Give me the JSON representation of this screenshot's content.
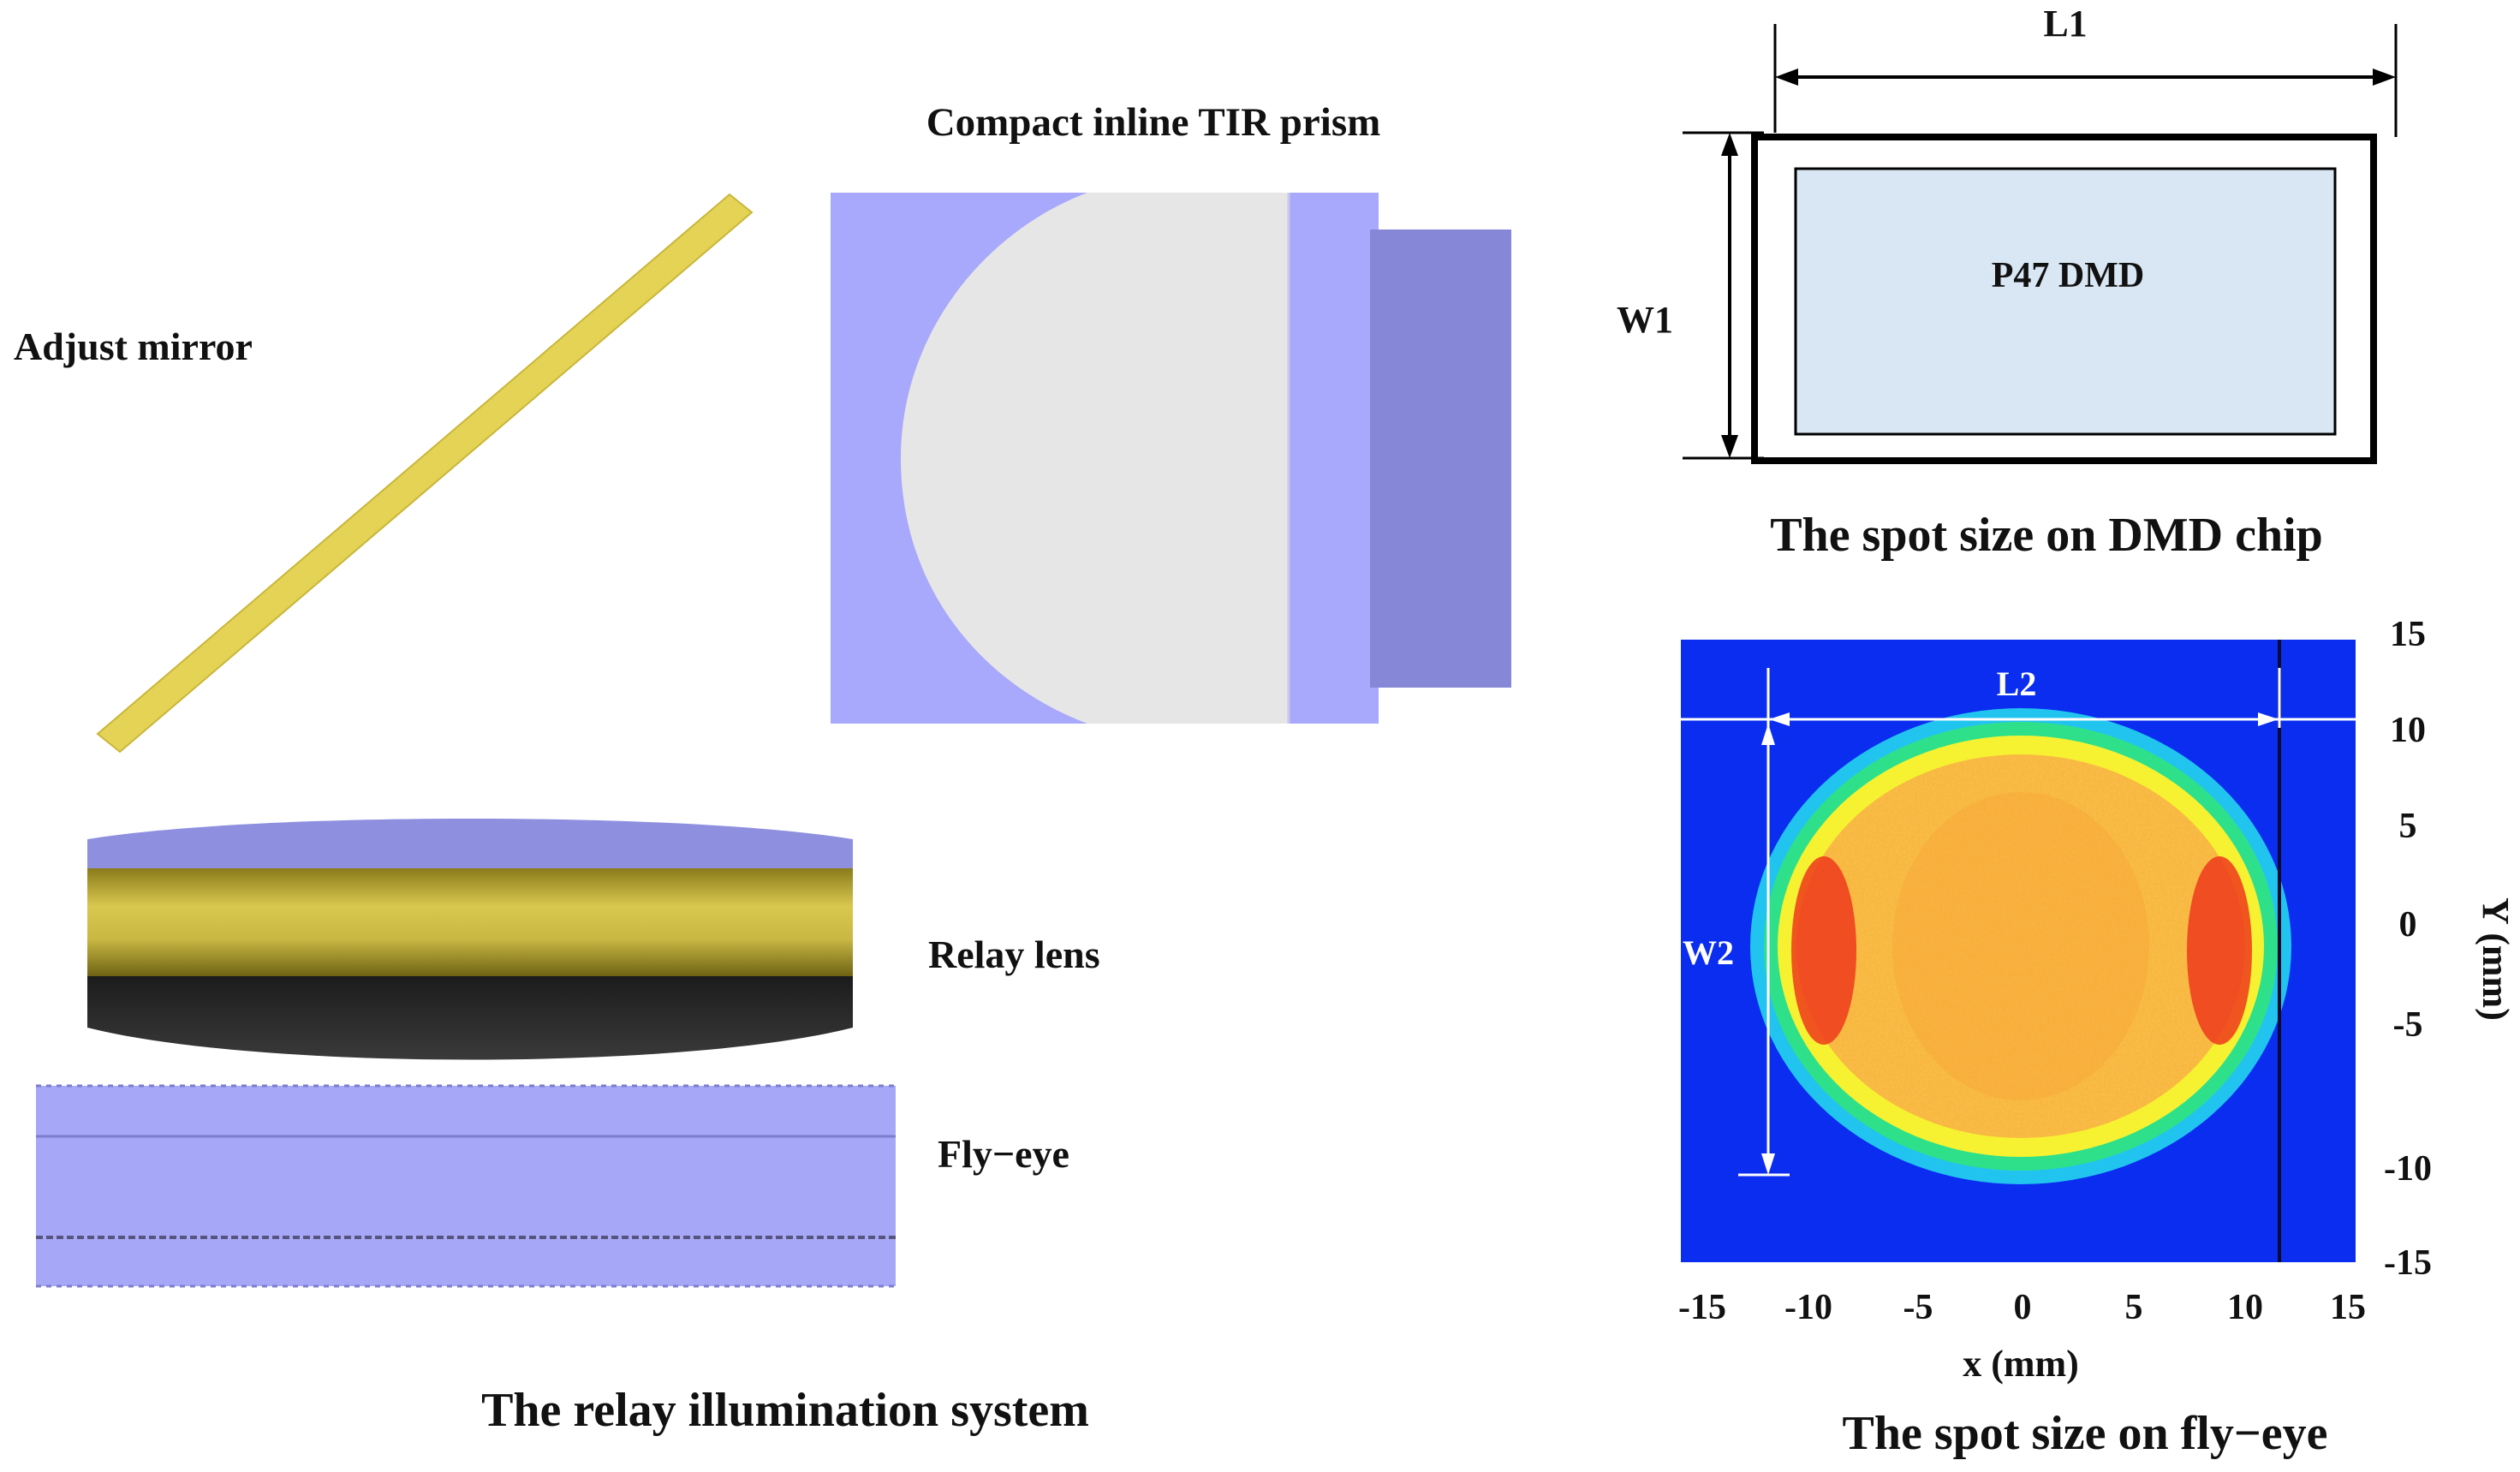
{
  "labels": {
    "tir_prism": "Compact inline TIR prism",
    "adjust_mirror": "Adjust mirror",
    "relay_lens": "Relay lens",
    "fly_eye": "Fly−eye",
    "relay_system_caption": "The relay illumination system",
    "dmd_chip_label": "P47 DMD",
    "dim_L1": "L1",
    "dim_W1": "W1",
    "dmd_caption": "The spot size  on DMD chip",
    "dim_L2": "L2",
    "dim_W2": "W2",
    "flyeye_caption": "The spot size  on fly−eye"
  },
  "chart_data": {
    "type": "heatmap",
    "xlabel": "x (mm)",
    "ylabel": "Y (mm)",
    "xlim": [
      -15,
      15
    ],
    "ylim": [
      -15,
      15
    ],
    "xticks": [
      "-15",
      "-10",
      "-5",
      "0",
      "5",
      "10",
      "15"
    ],
    "yticks": [
      "15",
      "10",
      "5",
      "0",
      "-5",
      "-10",
      "-15"
    ],
    "spot_x_range": [
      -12,
      12
    ],
    "spot_y_range": [
      -11,
      11
    ],
    "L2_range": [
      -11.5,
      11.5
    ],
    "W2_range": [
      -10.5,
      10.5
    ],
    "colors": {
      "background": "#0a2df0",
      "outer": "#21c4ee",
      "mid": "#2fe08a",
      "inner": "#f7f231",
      "core": "#f8b73d",
      "peak": "#ee3a1c"
    }
  },
  "colors": {
    "prism_body": "#a8a8fc",
    "prism_face": "#e6e6e6",
    "prism_block": "#8787d8",
    "mirror": "#e7d54c",
    "lens_top": "#8f8fe0",
    "lens_gold": "#b8a837",
    "lens_bottom": "#2c2c2c",
    "flyeye": "#a7a7f7",
    "dmd_fill": "#d9e6f3"
  }
}
